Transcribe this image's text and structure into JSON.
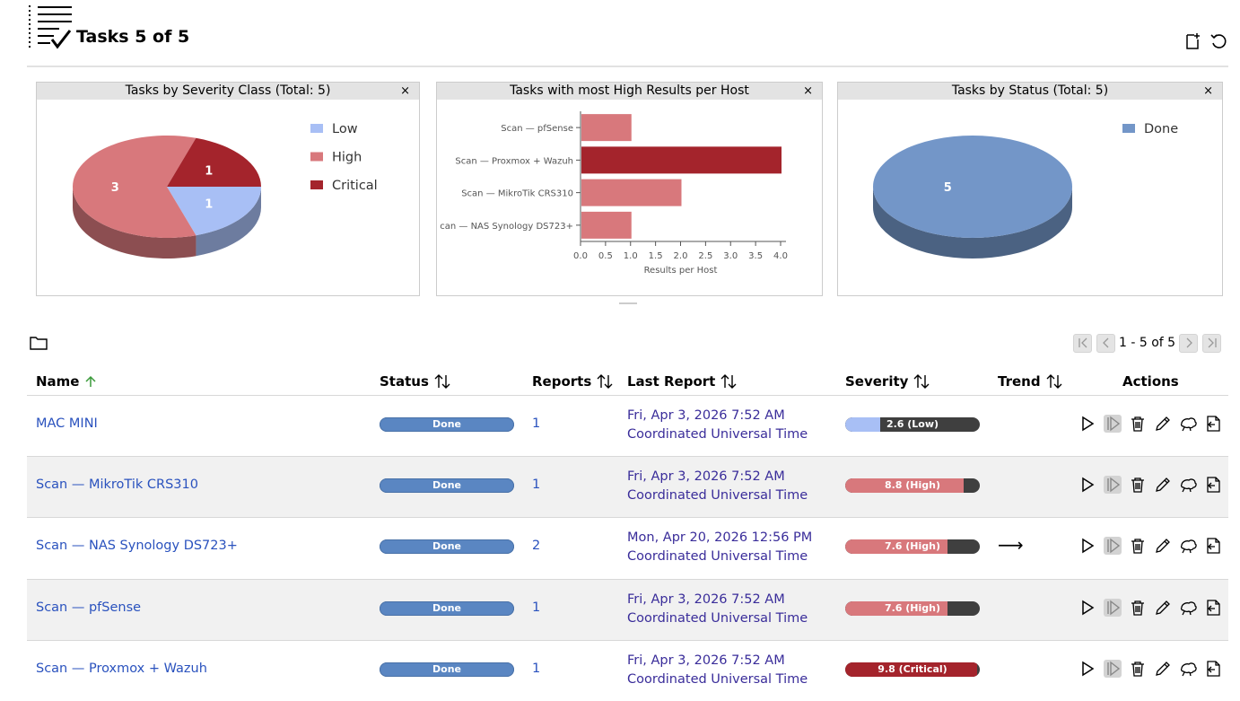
{
  "page": {
    "title": "Tasks 5 of 5"
  },
  "dashboard": {
    "severity_chart": {
      "title": "Tasks by Severity Class (Total: 5)",
      "close": "×"
    },
    "hosts_chart": {
      "title": "Tasks with most High Results per Host",
      "close": "×"
    },
    "status_chart": {
      "title": "Tasks by Status (Total: 5)",
      "close": "×"
    }
  },
  "chart_data": [
    {
      "type": "pie",
      "title": "Tasks by Severity Class (Total: 5)",
      "labels": [
        "Low",
        "High",
        "Critical"
      ],
      "values": [
        1,
        3,
        1
      ],
      "colors": [
        "#a8bff5",
        "#d8787c",
        "#a4242c"
      ],
      "legend": "right"
    },
    {
      "type": "bar",
      "orientation": "horizontal",
      "title": "Tasks with most High Results per Host",
      "categories": [
        "Scan — pfSense",
        "Scan — Proxmox + Wazuh",
        "Scan — MikroTik CRS310",
        "can — NAS Synology DS723+"
      ],
      "values": [
        1,
        4,
        2,
        1
      ],
      "colors": [
        "#d8787c",
        "#a4242c",
        "#d8787c",
        "#d8787c"
      ],
      "xlabel": "Results per Host",
      "xlim": [
        0,
        4
      ],
      "xticks": [
        "0.0",
        "0.5",
        "1.0",
        "1.5",
        "2.0",
        "2.5",
        "3.0",
        "3.5",
        "4.0"
      ]
    },
    {
      "type": "pie",
      "title": "Tasks by Status (Total: 5)",
      "labels": [
        "Done"
      ],
      "values": [
        5
      ],
      "colors": [
        "#7396c8"
      ],
      "legend": "right"
    }
  ],
  "pagination": {
    "text": "1 - 5 of 5"
  },
  "table": {
    "headers": {
      "name": "Name",
      "status": "Status",
      "reports": "Reports",
      "last_report": "Last Report",
      "severity": "Severity",
      "trend": "Trend",
      "actions": "Actions"
    },
    "rows": [
      {
        "name": "MAC MINI",
        "status": "Done",
        "reports": "1",
        "date": "Fri, Apr 3, 2026 7:52 AM",
        "tz": "Coordinated Universal Time",
        "severity": "2.6 (Low)",
        "severity_value": 2.6,
        "severity_color": "#a8bff5",
        "trend": ""
      },
      {
        "name": "Scan — MikroTik CRS310",
        "status": "Done",
        "reports": "1",
        "date": "Fri, Apr 3, 2026 7:52 AM",
        "tz": "Coordinated Universal Time",
        "severity": "8.8 (High)",
        "severity_value": 8.8,
        "severity_color": "#d8787c",
        "trend": ""
      },
      {
        "name": "Scan — NAS Synology DS723+",
        "status": "Done",
        "reports": "2",
        "date": "Mon, Apr 20, 2026 12:56 PM",
        "tz": "Coordinated Universal Time",
        "severity": "7.6 (High)",
        "severity_value": 7.6,
        "severity_color": "#d8787c",
        "trend": "⟶"
      },
      {
        "name": "Scan — pfSense",
        "status": "Done",
        "reports": "1",
        "date": "Fri, Apr 3, 2026 7:52 AM",
        "tz": "Coordinated Universal Time",
        "severity": "7.6 (High)",
        "severity_value": 7.6,
        "severity_color": "#d8787c",
        "trend": ""
      },
      {
        "name": "Scan — Proxmox + Wazuh",
        "status": "Done",
        "reports": "1",
        "date": "Fri, Apr 3, 2026 7:52 AM",
        "tz": "Coordinated Universal Time",
        "severity": "9.8 (Critical)",
        "severity_value": 9.8,
        "severity_color": "#a4242c",
        "trend": ""
      }
    ]
  }
}
